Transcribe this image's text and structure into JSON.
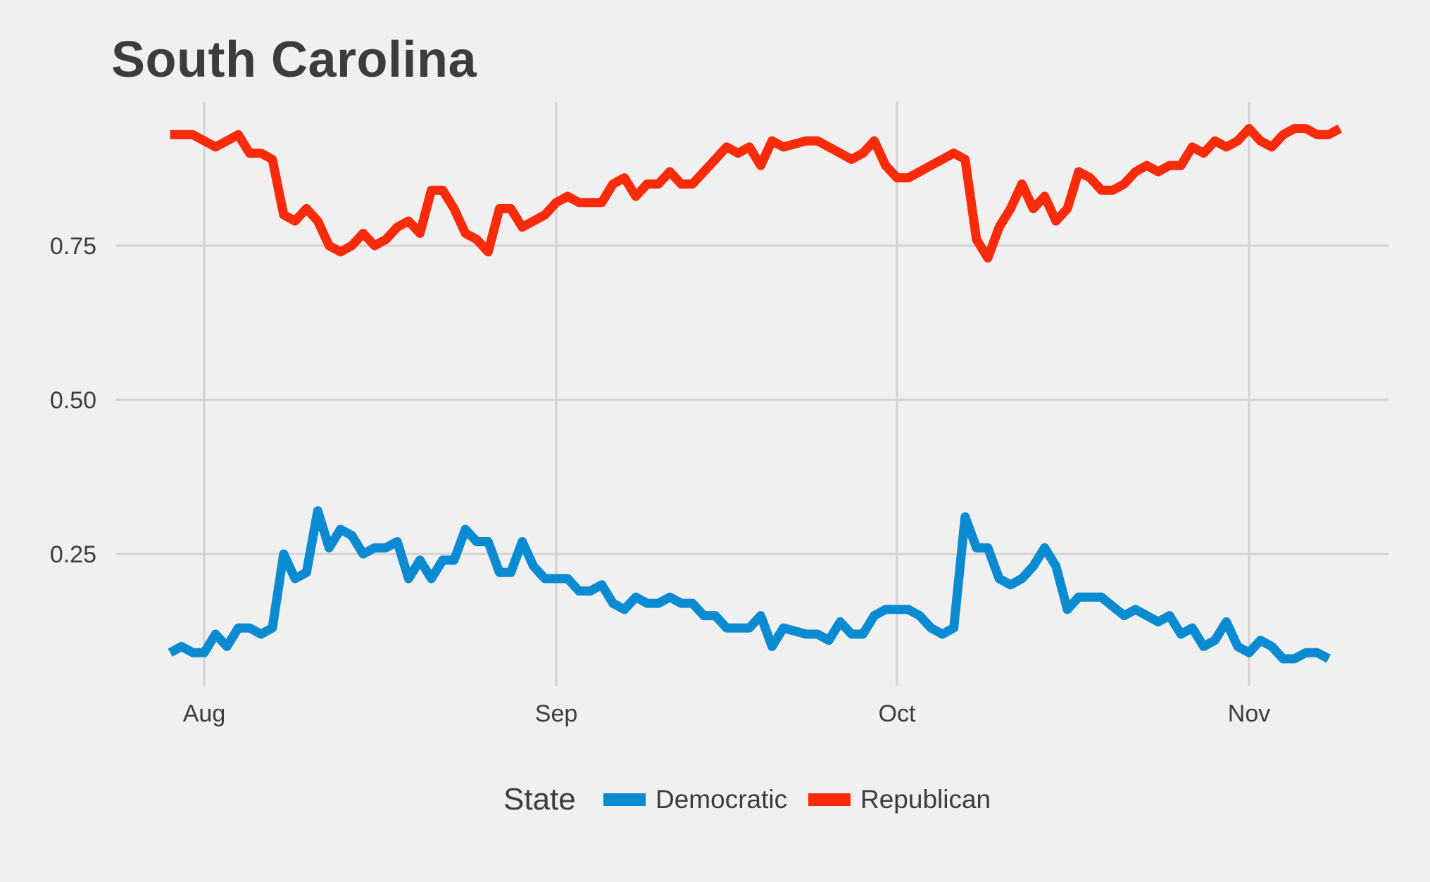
{
  "chart_data": {
    "type": "line",
    "title": "South Carolina",
    "xlabel": "",
    "ylabel": "",
    "x_range": [
      "2016-07-29",
      "2016-11-07"
    ],
    "ylim": [
      0.04,
      0.97
    ],
    "x_ticks": [
      {
        "date": "2016-08-01",
        "label": "Aug"
      },
      {
        "date": "2016-09-01",
        "label": "Sep"
      },
      {
        "date": "2016-10-01",
        "label": "Oct"
      },
      {
        "date": "2016-11-01",
        "label": "Nov"
      }
    ],
    "y_ticks": [
      {
        "value": 0.25,
        "label": "0.25"
      },
      {
        "value": 0.5,
        "label": "0.50"
      },
      {
        "value": 0.75,
        "label": "0.75"
      }
    ],
    "grid": true,
    "legend": {
      "title": "State",
      "position": "bottom"
    },
    "series": [
      {
        "name": "Democratic",
        "color": "#0a8bd1",
        "points": [
          [
            "2016-07-29",
            0.09
          ],
          [
            "2016-07-30",
            0.1
          ],
          [
            "2016-07-31",
            0.09
          ],
          [
            "2016-08-01",
            0.09
          ],
          [
            "2016-08-02",
            0.12
          ],
          [
            "2016-08-03",
            0.1
          ],
          [
            "2016-08-04",
            0.13
          ],
          [
            "2016-08-05",
            0.13
          ],
          [
            "2016-08-06",
            0.12
          ],
          [
            "2016-08-07",
            0.13
          ],
          [
            "2016-08-08",
            0.25
          ],
          [
            "2016-08-09",
            0.21
          ],
          [
            "2016-08-10",
            0.22
          ],
          [
            "2016-08-11",
            0.32
          ],
          [
            "2016-08-12",
            0.26
          ],
          [
            "2016-08-13",
            0.29
          ],
          [
            "2016-08-14",
            0.28
          ],
          [
            "2016-08-15",
            0.25
          ],
          [
            "2016-08-16",
            0.26
          ],
          [
            "2016-08-17",
            0.26
          ],
          [
            "2016-08-18",
            0.27
          ],
          [
            "2016-08-19",
            0.21
          ],
          [
            "2016-08-20",
            0.24
          ],
          [
            "2016-08-21",
            0.21
          ],
          [
            "2016-08-22",
            0.24
          ],
          [
            "2016-08-23",
            0.24
          ],
          [
            "2016-08-24",
            0.29
          ],
          [
            "2016-08-25",
            0.27
          ],
          [
            "2016-08-26",
            0.27
          ],
          [
            "2016-08-27",
            0.22
          ],
          [
            "2016-08-28",
            0.22
          ],
          [
            "2016-08-29",
            0.27
          ],
          [
            "2016-08-30",
            0.23
          ],
          [
            "2016-08-31",
            0.21
          ],
          [
            "2016-09-01",
            0.21
          ],
          [
            "2016-09-02",
            0.21
          ],
          [
            "2016-09-03",
            0.19
          ],
          [
            "2016-09-04",
            0.19
          ],
          [
            "2016-09-05",
            0.2
          ],
          [
            "2016-09-06",
            0.17
          ],
          [
            "2016-09-07",
            0.16
          ],
          [
            "2016-09-08",
            0.18
          ],
          [
            "2016-09-09",
            0.17
          ],
          [
            "2016-09-10",
            0.17
          ],
          [
            "2016-09-11",
            0.18
          ],
          [
            "2016-09-12",
            0.17
          ],
          [
            "2016-09-13",
            0.17
          ],
          [
            "2016-09-14",
            0.15
          ],
          [
            "2016-09-15",
            0.15
          ],
          [
            "2016-09-16",
            0.13
          ],
          [
            "2016-09-17",
            0.13
          ],
          [
            "2016-09-18",
            0.13
          ],
          [
            "2016-09-19",
            0.15
          ],
          [
            "2016-09-20",
            0.1
          ],
          [
            "2016-09-21",
            0.13
          ],
          [
            "2016-09-22",
            0.125
          ],
          [
            "2016-09-23",
            0.12
          ],
          [
            "2016-09-24",
            0.12
          ],
          [
            "2016-09-25",
            0.11
          ],
          [
            "2016-09-26",
            0.14
          ],
          [
            "2016-09-27",
            0.12
          ],
          [
            "2016-09-28",
            0.12
          ],
          [
            "2016-09-29",
            0.15
          ],
          [
            "2016-09-30",
            0.16
          ],
          [
            "2016-10-01",
            0.16
          ],
          [
            "2016-10-02",
            0.16
          ],
          [
            "2016-10-03",
            0.15
          ],
          [
            "2016-10-04",
            0.13
          ],
          [
            "2016-10-05",
            0.12
          ],
          [
            "2016-10-06",
            0.13
          ],
          [
            "2016-10-07",
            0.31
          ],
          [
            "2016-10-08",
            0.26
          ],
          [
            "2016-10-09",
            0.26
          ],
          [
            "2016-10-10",
            0.21
          ],
          [
            "2016-10-11",
            0.2
          ],
          [
            "2016-10-12",
            0.21
          ],
          [
            "2016-10-13",
            0.23
          ],
          [
            "2016-10-14",
            0.26
          ],
          [
            "2016-10-15",
            0.23
          ],
          [
            "2016-10-16",
            0.16
          ],
          [
            "2016-10-17",
            0.18
          ],
          [
            "2016-10-18",
            0.18
          ],
          [
            "2016-10-19",
            0.18
          ],
          [
            "2016-10-20",
            0.165
          ],
          [
            "2016-10-21",
            0.15
          ],
          [
            "2016-10-22",
            0.16
          ],
          [
            "2016-10-23",
            0.15
          ],
          [
            "2016-10-24",
            0.14
          ],
          [
            "2016-10-25",
            0.15
          ],
          [
            "2016-10-26",
            0.12
          ],
          [
            "2016-10-27",
            0.13
          ],
          [
            "2016-10-28",
            0.1
          ],
          [
            "2016-10-29",
            0.11
          ],
          [
            "2016-10-30",
            0.14
          ],
          [
            "2016-10-31",
            0.1
          ],
          [
            "2016-11-01",
            0.09
          ],
          [
            "2016-11-02",
            0.11
          ],
          [
            "2016-11-03",
            0.1
          ],
          [
            "2016-11-04",
            0.08
          ],
          [
            "2016-11-05",
            0.08
          ],
          [
            "2016-11-06",
            0.09
          ],
          [
            "2016-11-07",
            0.09
          ],
          [
            "2016-11-08",
            0.08
          ]
        ]
      },
      {
        "name": "Republican",
        "color": "#fa2b0a",
        "points": [
          [
            "2016-07-29",
            0.93
          ],
          [
            "2016-07-30",
            0.93
          ],
          [
            "2016-07-31",
            0.93
          ],
          [
            "2016-08-01",
            0.92
          ],
          [
            "2016-08-02",
            0.91
          ],
          [
            "2016-08-03",
            0.92
          ],
          [
            "2016-08-04",
            0.93
          ],
          [
            "2016-08-05",
            0.9
          ],
          [
            "2016-08-06",
            0.9
          ],
          [
            "2016-08-07",
            0.89
          ],
          [
            "2016-08-08",
            0.8
          ],
          [
            "2016-08-09",
            0.79
          ],
          [
            "2016-08-10",
            0.81
          ],
          [
            "2016-08-11",
            0.79
          ],
          [
            "2016-08-12",
            0.75
          ],
          [
            "2016-08-13",
            0.74
          ],
          [
            "2016-08-14",
            0.75
          ],
          [
            "2016-08-15",
            0.77
          ],
          [
            "2016-08-16",
            0.75
          ],
          [
            "2016-08-17",
            0.76
          ],
          [
            "2016-08-18",
            0.78
          ],
          [
            "2016-08-19",
            0.79
          ],
          [
            "2016-08-20",
            0.77
          ],
          [
            "2016-08-21",
            0.84
          ],
          [
            "2016-08-22",
            0.84
          ],
          [
            "2016-08-23",
            0.81
          ],
          [
            "2016-08-24",
            0.77
          ],
          [
            "2016-08-25",
            0.76
          ],
          [
            "2016-08-26",
            0.74
          ],
          [
            "2016-08-27",
            0.81
          ],
          [
            "2016-08-28",
            0.81
          ],
          [
            "2016-08-29",
            0.78
          ],
          [
            "2016-08-30",
            0.79
          ],
          [
            "2016-08-31",
            0.8
          ],
          [
            "2016-09-01",
            0.82
          ],
          [
            "2016-09-02",
            0.83
          ],
          [
            "2016-09-03",
            0.82
          ],
          [
            "2016-09-04",
            0.82
          ],
          [
            "2016-09-05",
            0.82
          ],
          [
            "2016-09-06",
            0.85
          ],
          [
            "2016-09-07",
            0.86
          ],
          [
            "2016-09-08",
            0.83
          ],
          [
            "2016-09-09",
            0.85
          ],
          [
            "2016-09-10",
            0.85
          ],
          [
            "2016-09-11",
            0.87
          ],
          [
            "2016-09-12",
            0.85
          ],
          [
            "2016-09-13",
            0.85
          ],
          [
            "2016-09-14",
            0.87
          ],
          [
            "2016-09-15",
            0.89
          ],
          [
            "2016-09-16",
            0.91
          ],
          [
            "2016-09-17",
            0.9
          ],
          [
            "2016-09-18",
            0.91
          ],
          [
            "2016-09-19",
            0.88
          ],
          [
            "2016-09-20",
            0.92
          ],
          [
            "2016-09-21",
            0.91
          ],
          [
            "2016-09-22",
            0.915
          ],
          [
            "2016-09-23",
            0.92
          ],
          [
            "2016-09-24",
            0.92
          ],
          [
            "2016-09-25",
            0.91
          ],
          [
            "2016-09-26",
            0.9
          ],
          [
            "2016-09-27",
            0.89
          ],
          [
            "2016-09-28",
            0.9
          ],
          [
            "2016-09-29",
            0.92
          ],
          [
            "2016-09-30",
            0.88
          ],
          [
            "2016-10-01",
            0.86
          ],
          [
            "2016-10-02",
            0.86
          ],
          [
            "2016-10-03",
            0.87
          ],
          [
            "2016-10-04",
            0.88
          ],
          [
            "2016-10-05",
            0.89
          ],
          [
            "2016-10-06",
            0.9
          ],
          [
            "2016-10-07",
            0.89
          ],
          [
            "2016-10-08",
            0.76
          ],
          [
            "2016-10-09",
            0.73
          ],
          [
            "2016-10-10",
            0.78
          ],
          [
            "2016-10-11",
            0.81
          ],
          [
            "2016-10-12",
            0.85
          ],
          [
            "2016-10-13",
            0.81
          ],
          [
            "2016-10-14",
            0.83
          ],
          [
            "2016-10-15",
            0.79
          ],
          [
            "2016-10-16",
            0.81
          ],
          [
            "2016-10-17",
            0.87
          ],
          [
            "2016-10-18",
            0.86
          ],
          [
            "2016-10-19",
            0.84
          ],
          [
            "2016-10-20",
            0.84
          ],
          [
            "2016-10-21",
            0.85
          ],
          [
            "2016-10-22",
            0.87
          ],
          [
            "2016-10-23",
            0.88
          ],
          [
            "2016-10-24",
            0.87
          ],
          [
            "2016-10-25",
            0.88
          ],
          [
            "2016-10-26",
            0.88
          ],
          [
            "2016-10-27",
            0.91
          ],
          [
            "2016-10-28",
            0.9
          ],
          [
            "2016-10-29",
            0.92
          ],
          [
            "2016-10-30",
            0.91
          ],
          [
            "2016-10-31",
            0.92
          ],
          [
            "2016-11-01",
            0.94
          ],
          [
            "2016-11-02",
            0.92
          ],
          [
            "2016-11-03",
            0.91
          ],
          [
            "2016-11-04",
            0.93
          ],
          [
            "2016-11-05",
            0.94
          ],
          [
            "2016-11-06",
            0.94
          ],
          [
            "2016-11-07",
            0.93
          ],
          [
            "2016-11-08",
            0.93
          ],
          [
            "2016-11-09",
            0.94
          ]
        ]
      }
    ]
  }
}
